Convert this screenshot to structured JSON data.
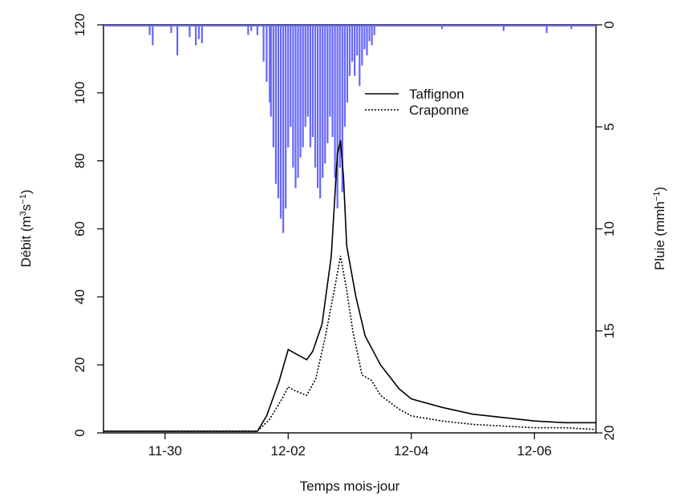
{
  "chart_data": {
    "type": "line",
    "title": "",
    "xlabel": "Temps mois-jour",
    "ylabel_left": {
      "base": "Débit (m",
      "sup1": "3",
      "mid": "s",
      "sup2": "−1",
      "end": ")"
    },
    "ylabel_right": {
      "base": "Pluie (mmh",
      "sup": "−1",
      "end": ")"
    },
    "x_ticks": [
      "11-30",
      "12-02",
      "12-04",
      "12-06"
    ],
    "x_tick_values": [
      1.0,
      3.0,
      5.0,
      7.0
    ],
    "xlim": [
      0.0,
      8.0
    ],
    "ylim_left": [
      0,
      120
    ],
    "y_ticks_left": [
      "0",
      "20",
      "40",
      "60",
      "80",
      "100",
      "120"
    ],
    "ylim_right_inverted": [
      20,
      0
    ],
    "y_ticks_right": [
      "0",
      "5",
      "10",
      "15",
      "20"
    ],
    "legend_position": "top-right",
    "series": [
      {
        "name": "Taffignon",
        "style": "solid",
        "color": "#000000",
        "x": [
          0.0,
          2.5,
          2.65,
          2.85,
          3.0,
          3.1,
          3.3,
          3.4,
          3.55,
          3.7,
          3.8,
          3.85,
          3.9,
          3.95,
          4.1,
          4.25,
          4.5,
          4.8,
          5.0,
          5.5,
          6.0,
          6.5,
          7.0,
          7.5,
          8.0
        ],
        "values": [
          0.5,
          0.5,
          5.0,
          15.0,
          24.5,
          23.5,
          21.5,
          24.0,
          32.0,
          52.0,
          82.0,
          86.0,
          75.0,
          55.0,
          40.0,
          28.5,
          20.0,
          13.0,
          10.0,
          7.5,
          5.5,
          4.5,
          3.5,
          3.0,
          3.0
        ]
      },
      {
        "name": "Craponne",
        "style": "dotted",
        "color": "#000000",
        "x": [
          0.0,
          2.5,
          2.7,
          2.9,
          3.0,
          3.1,
          3.3,
          3.45,
          3.6,
          3.75,
          3.85,
          3.95,
          4.05,
          4.2,
          4.35,
          4.5,
          4.8,
          5.0,
          5.5,
          6.0,
          6.5,
          7.0,
          7.5,
          8.0
        ],
        "values": [
          0.5,
          0.5,
          4.0,
          10.0,
          13.5,
          12.5,
          11.0,
          16.0,
          28.0,
          42.0,
          52.0,
          42.0,
          30.0,
          17.0,
          15.5,
          11.0,
          7.0,
          5.0,
          3.5,
          2.5,
          2.0,
          1.5,
          1.5,
          1.0
        ]
      }
    ],
    "rain": {
      "name": "Pluie",
      "color": "#6666ff",
      "x": [
        0.75,
        0.8,
        1.1,
        1.2,
        1.4,
        1.5,
        1.55,
        1.6,
        2.35,
        2.4,
        2.5,
        2.6,
        2.65,
        2.7,
        2.72,
        2.76,
        2.8,
        2.84,
        2.88,
        2.92,
        2.96,
        3.0,
        3.04,
        3.08,
        3.12,
        3.16,
        3.2,
        3.24,
        3.28,
        3.32,
        3.36,
        3.4,
        3.44,
        3.48,
        3.52,
        3.56,
        3.6,
        3.64,
        3.68,
        3.72,
        3.76,
        3.8,
        3.84,
        3.88,
        3.92,
        3.96,
        4.0,
        4.04,
        4.08,
        4.12,
        4.16,
        4.2,
        4.24,
        4.28,
        4.32,
        4.36,
        4.4,
        5.5,
        6.5,
        7.2,
        7.6
      ],
      "values": [
        0.5,
        1.0,
        0.4,
        1.5,
        0.6,
        1.0,
        0.7,
        0.9,
        0.5,
        0.3,
        0.5,
        1.8,
        2.8,
        3.8,
        4.5,
        6.0,
        7.8,
        8.5,
        9.5,
        10.2,
        9.0,
        6.0,
        5.0,
        7.0,
        8.0,
        7.5,
        6.5,
        6.0,
        5.0,
        4.5,
        6.0,
        5.5,
        7.0,
        8.0,
        8.5,
        7.5,
        6.8,
        5.8,
        4.5,
        5.5,
        7.5,
        9.0,
        7.0,
        8.2,
        5.0,
        3.8,
        2.5,
        1.8,
        2.5,
        1.5,
        3.0,
        2.0,
        1.2,
        1.5,
        0.8,
        1.0,
        0.5,
        0.2,
        0.3,
        0.4,
        0.2
      ]
    }
  }
}
